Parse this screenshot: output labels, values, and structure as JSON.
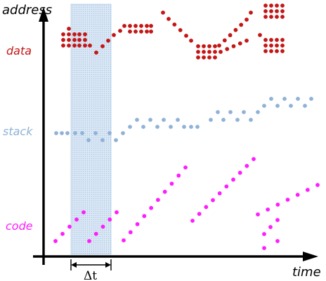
{
  "labels": {
    "y_axis": "address",
    "x_axis": "time",
    "data_region": "data",
    "stack_region": "stack",
    "code_region": "code",
    "window": "Δt"
  },
  "colors": {
    "data": "#c41616",
    "stack": "#8fb2d6",
    "code": "#ff1cff",
    "window_fill": "#c9dcef",
    "window_edge": "#7aa6cf",
    "axis": "#000000"
  }
}
